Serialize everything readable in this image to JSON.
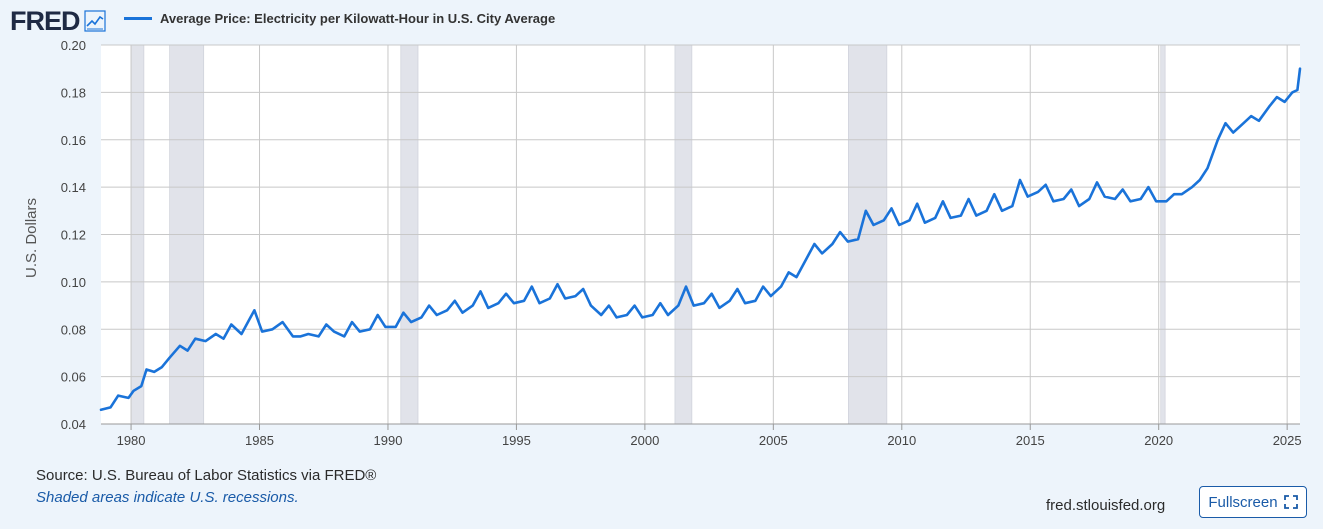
{
  "header": {
    "logo_text": "FRED",
    "logo_icon": "chart-line-icon"
  },
  "legend": {
    "series_label": "Average Price: Electricity per Kilowatt-Hour in U.S. City Average",
    "color": "#1a73d9"
  },
  "footer": {
    "source": "Source: U.S. Bureau of Labor Statistics via FRED®",
    "recession_note": "Shaded areas indicate U.S. recessions.",
    "site": "fred.stlouisfed.org",
    "fullscreen_label": "Fullscreen",
    "fullscreen_icon": "expand-icon"
  },
  "chart_data": {
    "type": "line",
    "ylabel": "U.S. Dollars",
    "xlabel": "",
    "ylim": [
      0.04,
      0.2
    ],
    "xlim": [
      1978.83,
      2025.5
    ],
    "y_ticks": [
      "0.04",
      "0.06",
      "0.08",
      "0.10",
      "0.12",
      "0.14",
      "0.16",
      "0.18",
      "0.20"
    ],
    "x_ticks": [
      "1980",
      "1985",
      "1990",
      "1995",
      "2000",
      "2005",
      "2010",
      "2015",
      "2020",
      "2025"
    ],
    "grid": true,
    "line_color": "#1a73d9",
    "recession_color": "#e1e3ea",
    "recessions": [
      [
        1980.0,
        1980.5
      ],
      [
        1981.5,
        1982.83
      ],
      [
        1990.5,
        1991.17
      ],
      [
        2001.17,
        2001.83
      ],
      [
        2007.92,
        2009.42
      ],
      [
        2020.08,
        2020.25
      ]
    ],
    "series": [
      {
        "name": "Average Price: Electricity per Kilowatt-Hour in U.S. City Average",
        "x": [
          1978.83,
          1979.2,
          1979.5,
          1979.9,
          1980.1,
          1980.4,
          1980.6,
          1980.9,
          1981.2,
          1981.5,
          1981.9,
          1982.2,
          1982.5,
          1982.9,
          1983.3,
          1983.6,
          1983.9,
          1984.3,
          1984.6,
          1984.8,
          1985.1,
          1985.5,
          1985.9,
          1986.3,
          1986.6,
          1986.9,
          1987.3,
          1987.6,
          1987.9,
          1988.3,
          1988.6,
          1988.9,
          1989.3,
          1989.6,
          1989.9,
          1990.3,
          1990.6,
          1990.9,
          1991.3,
          1991.6,
          1991.9,
          1992.3,
          1992.6,
          1992.9,
          1993.3,
          1993.6,
          1993.9,
          1994.3,
          1994.6,
          1994.9,
          1995.3,
          1995.6,
          1995.9,
          1996.3,
          1996.6,
          1996.9,
          1997.3,
          1997.6,
          1997.9,
          1998.3,
          1998.6,
          1998.9,
          1999.3,
          1999.6,
          1999.9,
          2000.3,
          2000.6,
          2000.9,
          2001.3,
          2001.6,
          2001.9,
          2002.3,
          2002.6,
          2002.9,
          2003.3,
          2003.6,
          2003.9,
          2004.3,
          2004.6,
          2004.9,
          2005.3,
          2005.6,
          2005.9,
          2006.3,
          2006.6,
          2006.9,
          2007.3,
          2007.6,
          2007.9,
          2008.3,
          2008.6,
          2008.9,
          2009.3,
          2009.6,
          2009.9,
          2010.3,
          2010.6,
          2010.9,
          2011.3,
          2011.6,
          2011.9,
          2012.3,
          2012.6,
          2012.9,
          2013.3,
          2013.6,
          2013.9,
          2014.3,
          2014.6,
          2014.9,
          2015.3,
          2015.6,
          2015.9,
          2016.3,
          2016.6,
          2016.9,
          2017.3,
          2017.6,
          2017.9,
          2018.3,
          2018.6,
          2018.9,
          2019.3,
          2019.6,
          2019.9,
          2020.3,
          2020.6,
          2020.9,
          2021.3,
          2021.6,
          2021.9,
          2022.3,
          2022.6,
          2022.9,
          2023.3,
          2023.6,
          2023.9,
          2024.3,
          2024.6,
          2024.9,
          2025.2,
          2025.4,
          2025.5
        ],
        "values": [
          0.046,
          0.047,
          0.052,
          0.051,
          0.054,
          0.056,
          0.063,
          0.062,
          0.064,
          0.068,
          0.073,
          0.071,
          0.076,
          0.075,
          0.078,
          0.076,
          0.082,
          0.078,
          0.084,
          0.088,
          0.079,
          0.08,
          0.083,
          0.077,
          0.077,
          0.078,
          0.077,
          0.082,
          0.079,
          0.077,
          0.083,
          0.079,
          0.08,
          0.086,
          0.081,
          0.081,
          0.087,
          0.083,
          0.085,
          0.09,
          0.086,
          0.088,
          0.092,
          0.087,
          0.09,
          0.096,
          0.089,
          0.091,
          0.095,
          0.091,
          0.092,
          0.098,
          0.091,
          0.093,
          0.099,
          0.093,
          0.094,
          0.097,
          0.09,
          0.086,
          0.09,
          0.085,
          0.086,
          0.09,
          0.085,
          0.086,
          0.091,
          0.086,
          0.09,
          0.098,
          0.09,
          0.091,
          0.095,
          0.089,
          0.092,
          0.097,
          0.091,
          0.092,
          0.098,
          0.094,
          0.098,
          0.104,
          0.102,
          0.11,
          0.116,
          0.112,
          0.116,
          0.121,
          0.117,
          0.118,
          0.13,
          0.124,
          0.126,
          0.131,
          0.124,
          0.126,
          0.133,
          0.125,
          0.127,
          0.134,
          0.127,
          0.128,
          0.135,
          0.128,
          0.13,
          0.137,
          0.13,
          0.132,
          0.143,
          0.136,
          0.138,
          0.141,
          0.134,
          0.135,
          0.139,
          0.132,
          0.135,
          0.142,
          0.136,
          0.135,
          0.139,
          0.134,
          0.135,
          0.14,
          0.134,
          0.134,
          0.137,
          0.137,
          0.14,
          0.143,
          0.148,
          0.16,
          0.167,
          0.163,
          0.167,
          0.17,
          0.168,
          0.174,
          0.178,
          0.176,
          0.18,
          0.181,
          0.19
        ]
      }
    ]
  }
}
